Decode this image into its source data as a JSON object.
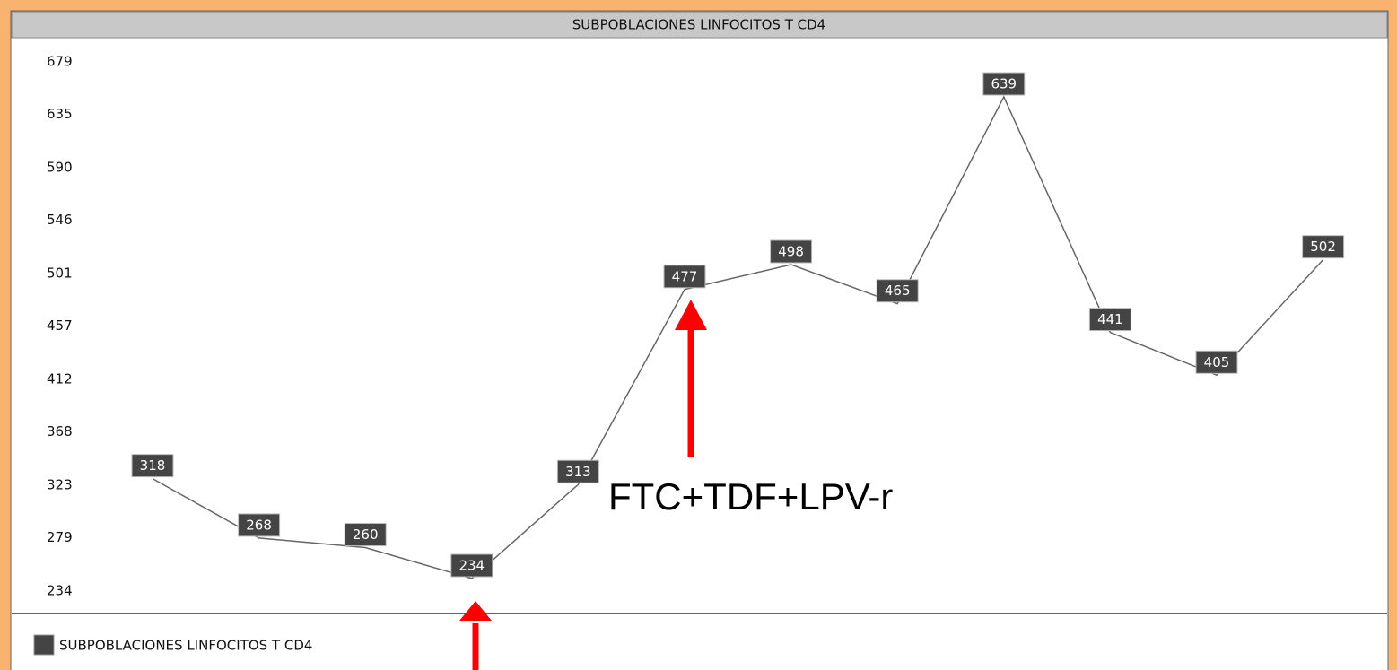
{
  "chart_data": {
    "type": "line",
    "title": "SUBPOBLACIONES LINFOCITOS T CD4",
    "categories": [
      null,
      null,
      null,
      null,
      null,
      null,
      null,
      null,
      null,
      null,
      null,
      null
    ],
    "series": [
      {
        "name": "SUBPOBLACIONES LINFOCITOS T CD4",
        "color": "#444444",
        "values": [
          318,
          268,
          260,
          234,
          313,
          477,
          498,
          465,
          639,
          441,
          405,
          502
        ]
      }
    ],
    "ylim": [
      234,
      679
    ],
    "yticks": [
      679,
      635,
      590,
      546,
      501,
      457,
      412,
      368,
      323,
      279,
      234
    ],
    "grid": false,
    "legend": "bottom-left",
    "annotation": "FTC+TDF+LPV-r"
  }
}
